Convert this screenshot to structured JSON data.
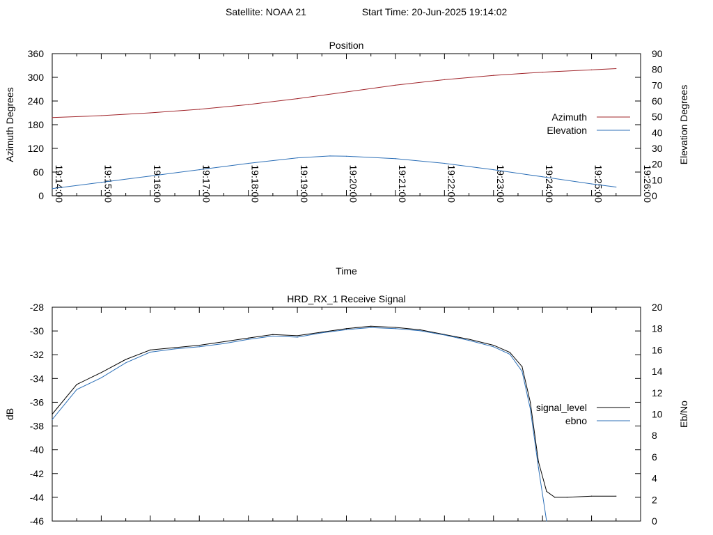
{
  "header": {
    "satellite": "Satellite: NOAA 21",
    "start_time": "Start Time: 20-Jun-2025 19:14:02"
  },
  "chart_data": [
    {
      "type": "line",
      "title": "Position",
      "xlabel": "Time",
      "ylabel_left": "Azimuth Degrees",
      "ylabel_right": "Elevation Degrees",
      "x_ticks": [
        "19:14:00",
        "19:15:00",
        "19:16:00",
        "19:17:00",
        "19:18:00",
        "19:19:00",
        "19:20:00",
        "19:21:00",
        "19:22:00",
        "19:23:00",
        "19:24:00",
        "19:25:00",
        "19:26:00"
      ],
      "xlim": [
        "19:14:00",
        "19:26:00"
      ],
      "ylim_left": [
        0,
        360
      ],
      "yticks_left": [
        "0",
        "60",
        "120",
        "180",
        "240",
        "300",
        "360"
      ],
      "ylim_right": [
        0,
        90
      ],
      "yticks_right": [
        "0",
        "10",
        "20",
        "30",
        "40",
        "50",
        "60",
        "70",
        "80",
        "90"
      ],
      "legend_position": "right",
      "series": [
        {
          "name": "Azimuth",
          "axis": "left",
          "color": "#a0242a",
          "x": [
            "19:14:00",
            "19:15:00",
            "19:16:00",
            "19:17:00",
            "19:18:00",
            "19:19:00",
            "19:20:00",
            "19:21:00",
            "19:22:00",
            "19:23:00",
            "19:24:00",
            "19:25:00",
            "19:25:30"
          ],
          "y": [
            198,
            203,
            210,
            219,
            231,
            246,
            263,
            280,
            294,
            305,
            313,
            319,
            322
          ]
        },
        {
          "name": "Elevation",
          "axis": "right",
          "color": "#2c6fb7",
          "x": [
            "19:14:00",
            "19:15:00",
            "19:16:00",
            "19:17:00",
            "19:18:00",
            "19:19:00",
            "19:19:40",
            "19:20:00",
            "19:21:00",
            "19:22:00",
            "19:23:00",
            "19:24:00",
            "19:25:00",
            "19:25:30"
          ],
          "y": [
            4.5,
            8.5,
            12.5,
            16.5,
            20.5,
            24,
            25.2,
            25,
            23.5,
            20.5,
            16.5,
            12,
            7.5,
            5.5
          ]
        }
      ]
    },
    {
      "type": "line",
      "title": "HRD_RX_1 Receive Signal",
      "xlabel": "",
      "ylabel_left": "dB",
      "ylabel_right": "Eb/No",
      "xlim": [
        "19:14:00",
        "19:26:00"
      ],
      "ylim_left": [
        -46,
        -28
      ],
      "yticks_left": [
        "-46",
        "-44",
        "-42",
        "-40",
        "-38",
        "-36",
        "-34",
        "-32",
        "-30",
        "-28"
      ],
      "ylim_right": [
        0,
        20
      ],
      "yticks_right": [
        "0",
        "2",
        "4",
        "6",
        "8",
        "10",
        "12",
        "14",
        "16",
        "18",
        "20"
      ],
      "legend_position": "right",
      "series": [
        {
          "name": "signal_level",
          "axis": "left",
          "color": "#000000",
          "x": [
            "19:14:00",
            "19:14:30",
            "19:15:00",
            "19:15:30",
            "19:16:00",
            "19:16:30",
            "19:17:00",
            "19:17:30",
            "19:18:00",
            "19:18:30",
            "19:19:00",
            "19:19:30",
            "19:20:00",
            "19:20:30",
            "19:21:00",
            "19:21:30",
            "19:22:00",
            "19:22:30",
            "19:23:00",
            "19:23:20",
            "19:23:35",
            "19:23:45",
            "19:23:55",
            "19:24:05",
            "19:24:15",
            "19:24:30",
            "19:25:00",
            "19:25:30"
          ],
          "y": [
            -37,
            -34.5,
            -33.5,
            -32.4,
            -31.6,
            -31.4,
            -31.2,
            -30.9,
            -30.6,
            -30.3,
            -30.4,
            -30.1,
            -29.8,
            -29.6,
            -29.7,
            -29.9,
            -30.3,
            -30.7,
            -31.2,
            -31.8,
            -33.0,
            -36.0,
            -41.0,
            -43.5,
            -44.0,
            -44.0,
            -43.9,
            -43.9
          ]
        },
        {
          "name": "ebno",
          "axis": "right",
          "color": "#2c6fb7",
          "x": [
            "19:14:00",
            "19:14:30",
            "19:15:00",
            "19:15:30",
            "19:16:00",
            "19:16:30",
            "19:17:00",
            "19:17:30",
            "19:18:00",
            "19:18:30",
            "19:19:00",
            "19:19:30",
            "19:20:00",
            "19:20:30",
            "19:21:00",
            "19:21:30",
            "19:22:00",
            "19:22:30",
            "19:23:00",
            "19:23:20",
            "19:23:35",
            "19:23:45",
            "19:23:55",
            "19:24:05"
          ],
          "y": [
            9.5,
            12.3,
            13.4,
            14.8,
            15.8,
            16.1,
            16.3,
            16.6,
            17.0,
            17.3,
            17.2,
            17.6,
            17.9,
            18.1,
            18.0,
            17.8,
            17.4,
            16.9,
            16.3,
            15.6,
            14.0,
            10.5,
            5.0,
            0
          ]
        }
      ]
    }
  ]
}
